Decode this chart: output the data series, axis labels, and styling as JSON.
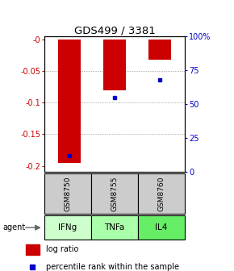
{
  "title": "GDS499 / 3381",
  "samples": [
    "GSM8750",
    "GSM8755",
    "GSM8760"
  ],
  "agents": [
    "IFNg",
    "TNFa",
    "IL4"
  ],
  "log_ratios": [
    -0.195,
    -0.08,
    -0.032
  ],
  "percentile_ranks": [
    0.12,
    0.55,
    0.68
  ],
  "ylim_left": [
    -0.21,
    0.005
  ],
  "ylim_right": [
    -0.0,
    1.0
  ],
  "yticks_left": [
    0.0,
    -0.05,
    -0.1,
    -0.15,
    -0.2
  ],
  "ytick_labels_left": [
    "-0",
    "-0.05",
    "-0.1",
    "-0.15",
    "-0.2"
  ],
  "yticks_right": [
    1.0,
    0.75,
    0.5,
    0.25,
    0.0
  ],
  "ytick_labels_right": [
    "100%",
    "75",
    "50",
    "25",
    "0"
  ],
  "bar_color": "#cc0000",
  "marker_color": "#0000cc",
  "grid_color": "#888888",
  "agent_colors": [
    "#ccffcc",
    "#aaffaa",
    "#66ee66"
  ],
  "sample_bg": "#cccccc",
  "left_tick_color": "#cc0000",
  "right_tick_color": "#0000cc",
  "bar_width": 0.5
}
